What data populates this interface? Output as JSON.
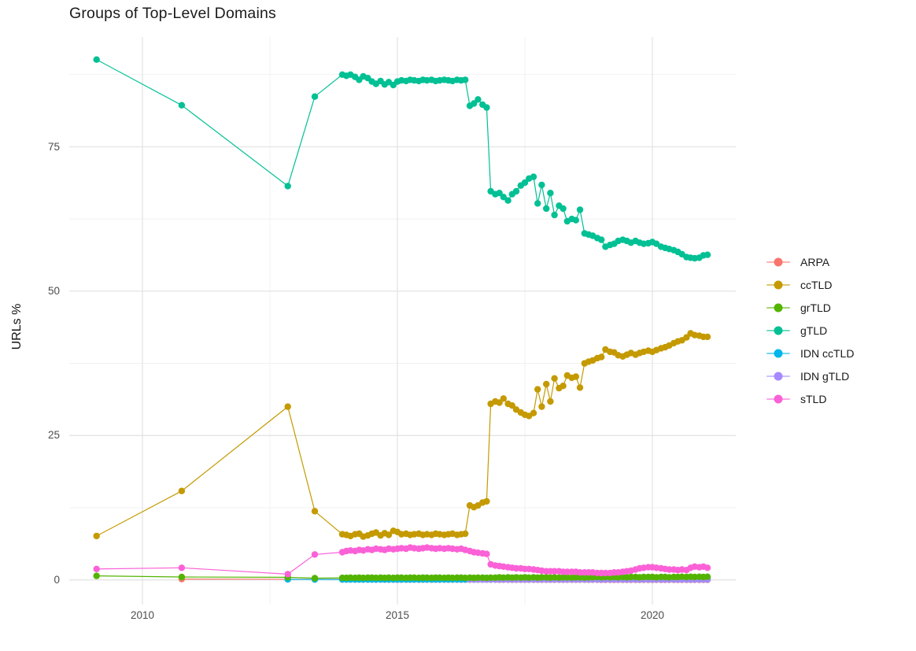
{
  "title": "Groups of Top-Level Domains",
  "y_axis": {
    "label": "URLs %",
    "ticks": [
      "0",
      "25",
      "50",
      "75"
    ]
  },
  "x_axis": {
    "ticks": [
      "2010",
      "2015",
      "2020"
    ]
  },
  "legend": {
    "items": [
      {
        "label": "ARPA",
        "color": "#F8766D"
      },
      {
        "label": "ccTLD",
        "color": "#C49A00"
      },
      {
        "label": "grTLD",
        "color": "#53B400"
      },
      {
        "label": "gTLD",
        "color": "#00C094"
      },
      {
        "label": "IDN ccTLD",
        "color": "#00B6EB"
      },
      {
        "label": "IDN gTLD",
        "color": "#A58AFF"
      },
      {
        "label": "sTLD",
        "color": "#FB61D7"
      }
    ]
  },
  "chart_data": {
    "type": "line",
    "title": "Groups of Top-Level Domains",
    "xlabel": "",
    "ylabel": "URLs %",
    "xlim": [
      2008.55,
      2021.65
    ],
    "ylim": [
      -4.3,
      94
    ],
    "grid": "on",
    "legend_position": "right",
    "x_major_ticks": [
      2010,
      2015,
      2020
    ],
    "x_minor_gridlines": [
      2012.5,
      2017.5
    ],
    "y_major_ticks": [
      0,
      25,
      50,
      75
    ],
    "y_minor_gridlines": [
      12.5,
      37.5,
      62.5,
      87.5
    ],
    "x": [
      2009.1,
      2010.77,
      2012.85,
      2013.38,
      2013.92,
      2014.0,
      2014.08,
      2014.17,
      2014.25,
      2014.33,
      2014.42,
      2014.5,
      2014.58,
      2014.67,
      2014.75,
      2014.83,
      2014.92,
      2015.0,
      2015.08,
      2015.17,
      2015.25,
      2015.33,
      2015.42,
      2015.5,
      2015.58,
      2015.67,
      2015.75,
      2015.83,
      2015.92,
      2016.0,
      2016.08,
      2016.17,
      2016.25,
      2016.33,
      2016.42,
      2016.5,
      2016.58,
      2016.67,
      2016.75,
      2016.83,
      2016.92,
      2017.0,
      2017.08,
      2017.17,
      2017.25,
      2017.33,
      2017.42,
      2017.5,
      2017.58,
      2017.67,
      2017.75,
      2017.83,
      2017.92,
      2018.0,
      2018.08,
      2018.17,
      2018.25,
      2018.33,
      2018.42,
      2018.5,
      2018.58,
      2018.67,
      2018.75,
      2018.83,
      2018.92,
      2019.0,
      2019.08,
      2019.17,
      2019.25,
      2019.33,
      2019.42,
      2019.5,
      2019.58,
      2019.67,
      2019.75,
      2019.83,
      2019.92,
      2020.0,
      2020.08,
      2020.17,
      2020.25,
      2020.33,
      2020.42,
      2020.5,
      2020.58,
      2020.67,
      2020.75,
      2020.83,
      2020.92,
      2021.0,
      2021.08
    ],
    "series": [
      {
        "name": "ARPA",
        "color": "#F8766D",
        "values": [
          null,
          0.15,
          0.12,
          0.1,
          0.1,
          0.08,
          0.08,
          0.07,
          0.08,
          0.07,
          0.07,
          0.07,
          0.06,
          0.07,
          0.06,
          0.06,
          0.06,
          0.06,
          0.05,
          0.06,
          0.05,
          0.05,
          0.05,
          0.05,
          0.05,
          0.05,
          0.05,
          0.05,
          0.05,
          0.05,
          0.05,
          0.05,
          0.05,
          0.05,
          0.05,
          0.05,
          0.05,
          0.05,
          0.05,
          0.05,
          0.05,
          0.04,
          0.04,
          0.04,
          0.04,
          0.04,
          0.04,
          0.04,
          0.04,
          0.04,
          0.04,
          0.04,
          0.04,
          0.04,
          0.04,
          0.04,
          0.04,
          0.04,
          0.04,
          0.04,
          0.04,
          0.04,
          0.04,
          0.04,
          0.04,
          0.03,
          0.03,
          0.03,
          0.03,
          0.03,
          0.03,
          0.03,
          0.03,
          0.03,
          0.03,
          0.03,
          0.03,
          0.03,
          0.03,
          0.03,
          0.03,
          0.03,
          0.03,
          0.03,
          0.03,
          0.03,
          0.03,
          0.03,
          0.03,
          0.03,
          0.03
        ]
      },
      {
        "name": "ccTLD",
        "color": "#C49A00",
        "values": [
          7.6,
          15.4,
          30.0,
          11.9,
          7.9,
          7.8,
          7.6,
          7.9,
          8.0,
          7.5,
          7.7,
          8.0,
          8.2,
          7.7,
          8.1,
          7.8,
          8.5,
          8.3,
          7.9,
          8.0,
          7.8,
          7.9,
          8.0,
          7.8,
          7.9,
          7.8,
          8.0,
          7.9,
          7.8,
          7.9,
          8.0,
          7.8,
          7.9,
          8.0,
          12.9,
          12.6,
          12.9,
          13.4,
          13.6,
          30.5,
          30.9,
          30.7,
          31.4,
          30.5,
          30.2,
          29.5,
          29.0,
          28.6,
          28.4,
          28.9,
          33.0,
          30.0,
          33.9,
          30.9,
          34.9,
          33.2,
          33.6,
          35.4,
          35.0,
          35.2,
          33.3,
          37.5,
          37.8,
          38.0,
          38.4,
          38.6,
          39.9,
          39.5,
          39.4,
          38.9,
          38.7,
          39.0,
          39.3,
          39.0,
          39.3,
          39.5,
          39.7,
          39.5,
          39.8,
          40.1,
          40.3,
          40.6,
          41.0,
          41.3,
          41.5,
          42.0,
          42.7,
          42.4,
          42.3,
          42.1,
          42.1
        ]
      },
      {
        "name": "grTLD",
        "color": "#53B400",
        "values": [
          0.7,
          0.5,
          0.45,
          0.3,
          0.35,
          0.35,
          0.4,
          0.35,
          0.4,
          0.35,
          0.4,
          0.4,
          0.35,
          0.4,
          0.35,
          0.4,
          0.35,
          0.4,
          0.4,
          0.35,
          0.4,
          0.4,
          0.35,
          0.4,
          0.4,
          0.35,
          0.4,
          0.4,
          0.35,
          0.4,
          0.35,
          0.4,
          0.4,
          0.35,
          0.4,
          0.35,
          0.4,
          0.4,
          0.35,
          0.4,
          0.4,
          0.45,
          0.4,
          0.45,
          0.4,
          0.45,
          0.4,
          0.45,
          0.4,
          0.45,
          0.4,
          0.45,
          0.45,
          0.4,
          0.45,
          0.4,
          0.45,
          0.45,
          0.4,
          0.45,
          0.45,
          0.4,
          0.45,
          0.45,
          0.5,
          0.45,
          0.5,
          0.45,
          0.5,
          0.45,
          0.5,
          0.45,
          0.5,
          0.5,
          0.45,
          0.5,
          0.5,
          0.5,
          0.45,
          0.5,
          0.5,
          0.45,
          0.5,
          0.5,
          0.55,
          0.5,
          0.55,
          0.5,
          0.55,
          0.5,
          0.55
        ]
      },
      {
        "name": "gTLD",
        "color": "#00C094",
        "values": [
          90.1,
          82.2,
          68.2,
          83.7,
          87.5,
          87.3,
          87.5,
          87.1,
          86.6,
          87.2,
          86.9,
          86.3,
          85.9,
          86.4,
          85.8,
          86.2,
          85.7,
          86.3,
          86.5,
          86.4,
          86.6,
          86.5,
          86.4,
          86.6,
          86.5,
          86.6,
          86.4,
          86.5,
          86.6,
          86.5,
          86.4,
          86.6,
          86.5,
          86.6,
          82.1,
          82.5,
          83.2,
          82.3,
          81.8,
          67.3,
          66.8,
          67.0,
          66.3,
          65.7,
          66.8,
          67.3,
          68.3,
          68.8,
          69.5,
          69.8,
          65.2,
          68.4,
          64.3,
          67.0,
          63.2,
          64.8,
          64.3,
          62.1,
          62.5,
          62.3,
          64.1,
          60.0,
          59.8,
          59.6,
          59.2,
          58.9,
          57.7,
          58.0,
          58.2,
          58.7,
          58.9,
          58.7,
          58.4,
          58.7,
          58.4,
          58.2,
          58.3,
          58.5,
          58.2,
          57.7,
          57.5,
          57.3,
          57.1,
          56.8,
          56.4,
          55.9,
          55.8,
          55.7,
          55.8,
          56.2,
          56.3
        ]
      },
      {
        "name": "IDN ccTLD",
        "color": "#00B6EB",
        "values": [
          null,
          null,
          0.1,
          0.08,
          0.07,
          0.07,
          0.07,
          0.07,
          0.07,
          0.07,
          0.07,
          0.07,
          0.07,
          0.07,
          0.07,
          0.07,
          0.07,
          0.08,
          0.08,
          0.08,
          0.08,
          0.08,
          0.08,
          0.08,
          0.08,
          0.08,
          0.08,
          0.08,
          0.08,
          0.08,
          0.08,
          0.08,
          0.08,
          0.08,
          0.08,
          0.08,
          0.08,
          0.08,
          0.08,
          0.08,
          0.08,
          0.1,
          0.1,
          0.1,
          0.1,
          0.1,
          0.1,
          0.1,
          0.1,
          0.1,
          0.1,
          0.1,
          0.1,
          0.1,
          0.1,
          0.1,
          0.1,
          0.1,
          0.1,
          0.1,
          0.1,
          0.1,
          0.1,
          0.1,
          0.1,
          0.1,
          0.1,
          0.1,
          0.1,
          0.1,
          0.1,
          0.1,
          0.1,
          0.1,
          0.1,
          0.1,
          0.1,
          0.1,
          0.1,
          0.1,
          0.1,
          0.1,
          0.1,
          0.1,
          0.1,
          0.1,
          0.1,
          0.1,
          0.1,
          0.1,
          0.1
        ]
      },
      {
        "name": "IDN gTLD",
        "color": "#A58AFF",
        "values": [
          null,
          null,
          null,
          null,
          null,
          null,
          null,
          null,
          null,
          null,
          null,
          null,
          null,
          null,
          null,
          null,
          null,
          null,
          null,
          null,
          null,
          null,
          null,
          null,
          null,
          null,
          null,
          null,
          null,
          null,
          null,
          null,
          null,
          null,
          0.1,
          0.1,
          0.1,
          0.1,
          0.1,
          0.1,
          0.1,
          0.1,
          0.09,
          0.1,
          0.11,
          0.1,
          0.09,
          0.1,
          0.1,
          0.09,
          0.1,
          0.1,
          0.09,
          0.09,
          0.1,
          0.09,
          0.1,
          0.1,
          0.09,
          0.1,
          0.09,
          0.1,
          0.09,
          0.1,
          0.1,
          0.08,
          0.09,
          0.08,
          0.09,
          0.08,
          0.09,
          0.08,
          0.09,
          0.08,
          0.09,
          0.08,
          0.09,
          0.08,
          0.08,
          0.09,
          0.08,
          0.08,
          0.09,
          0.08,
          0.08,
          0.09,
          0.08,
          0.08,
          0.09,
          0.08,
          0.08
        ]
      },
      {
        "name": "sTLD",
        "color": "#FB61D7",
        "values": [
          1.9,
          2.1,
          1.0,
          4.4,
          4.8,
          5.0,
          5.1,
          5.0,
          5.2,
          5.1,
          5.3,
          5.2,
          5.4,
          5.3,
          5.2,
          5.4,
          5.3,
          5.4,
          5.5,
          5.4,
          5.6,
          5.5,
          5.4,
          5.5,
          5.6,
          5.5,
          5.4,
          5.5,
          5.4,
          5.5,
          5.4,
          5.3,
          5.4,
          5.2,
          5.0,
          4.8,
          4.7,
          4.6,
          4.5,
          2.7,
          2.5,
          2.4,
          2.3,
          2.2,
          2.1,
          2.0,
          2.0,
          1.9,
          1.9,
          1.8,
          1.7,
          1.6,
          1.5,
          1.5,
          1.5,
          1.5,
          1.4,
          1.4,
          1.4,
          1.4,
          1.3,
          1.3,
          1.3,
          1.3,
          1.2,
          1.2,
          1.2,
          1.2,
          1.3,
          1.3,
          1.4,
          1.5,
          1.6,
          1.8,
          2.0,
          2.1,
          2.2,
          2.2,
          2.1,
          2.0,
          1.9,
          1.8,
          1.8,
          1.7,
          1.8,
          1.7,
          2.1,
          2.3,
          2.2,
          2.3,
          2.1
        ]
      }
    ]
  }
}
